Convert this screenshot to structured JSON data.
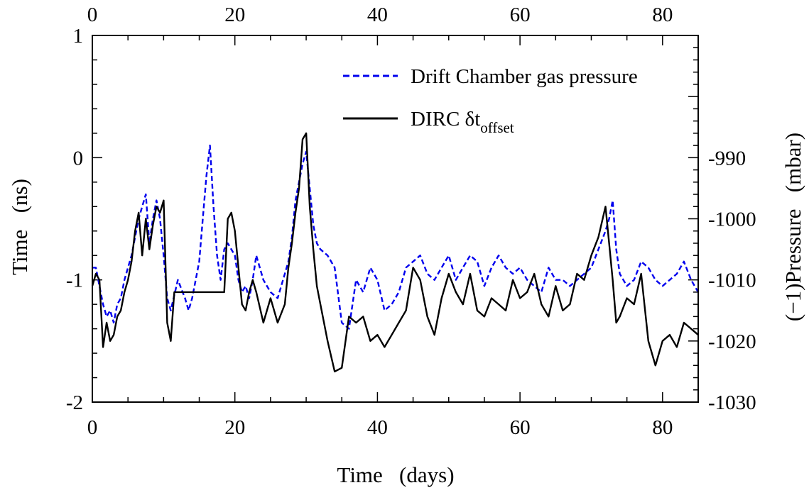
{
  "chart_data": {
    "type": "line",
    "xlabel": "Time   (days)",
    "ylabel": "Time   (ns)",
    "ylabel_right": "(−1)Pressure   (mbar)",
    "xlim": [
      0,
      85
    ],
    "ylim": [
      -2,
      1
    ],
    "ylim_right": [
      -1030,
      -970
    ],
    "xticks": [
      0,
      20,
      40,
      60,
      80
    ],
    "xticks_top": [
      0,
      20,
      40,
      60,
      80
    ],
    "yticks": [
      -2,
      -1,
      0,
      1
    ],
    "yticks_right": [
      -1030,
      -1020,
      -1010,
      -1000,
      -990
    ],
    "grid": false,
    "legend_position": "top-right",
    "series": [
      {
        "name": "Drift Chamber gas pressure",
        "axis": "right",
        "style": "dashed",
        "color": "#0000ee",
        "x": [
          0,
          0.5,
          1,
          1.5,
          2,
          2.5,
          3,
          3.5,
          4,
          4.5,
          5,
          5.5,
          6,
          6.5,
          7,
          7.5,
          8,
          8.5,
          9,
          9.5,
          10,
          10.5,
          11,
          12,
          13,
          13.5,
          14,
          14.5,
          15,
          15.5,
          16,
          16.5,
          17,
          17.5,
          18,
          18.5,
          19,
          19.5,
          20,
          20.5,
          21,
          21.5,
          22,
          22.5,
          23,
          24,
          25,
          26,
          27,
          27.5,
          28,
          28.5,
          29,
          29.5,
          30,
          30.5,
          31,
          31.5,
          32,
          33,
          34,
          35,
          36,
          37,
          38,
          39,
          40,
          41,
          42,
          43,
          44,
          45,
          46,
          47,
          48,
          49,
          50,
          51,
          52,
          53,
          54,
          55,
          56,
          57,
          58,
          59,
          60,
          61,
          62,
          63,
          64,
          65,
          66,
          67,
          68,
          69,
          70,
          71,
          72,
          72.5,
          73,
          73.5,
          74,
          75,
          76,
          77,
          78,
          79,
          80,
          81,
          82,
          83,
          84,
          85
        ],
        "y": [
          -1008,
          -1008,
          -1011,
          -1014,
          -1016,
          -1015,
          -1017,
          -1014,
          -1013,
          -1010,
          -1008,
          -1006,
          -1003,
          -1000,
          -998,
          -996,
          -1004,
          -1000,
          -997,
          -1000,
          -1006,
          -1013,
          -1015,
          -1010,
          -1013,
          -1015,
          -1013,
          -1010,
          -1007,
          -1000,
          -993,
          -988,
          -998,
          -1006,
          -1010,
          -1005,
          -1004,
          -1005,
          -1006,
          -1010,
          -1012,
          -1011,
          -1013,
          -1010,
          -1006,
          -1010,
          -1012,
          -1013,
          -1009,
          -1007,
          -1003,
          -997,
          -994,
          -991,
          -989,
          -995,
          -1001,
          -1004,
          -1005,
          -1006,
          -1008,
          -1017,
          -1018,
          -1010,
          -1012,
          -1008,
          -1010,
          -1015,
          -1014,
          -1012,
          -1008,
          -1007,
          -1006,
          -1009,
          -1010,
          -1008,
          -1006,
          -1010,
          -1008,
          -1006,
          -1007,
          -1011,
          -1008,
          -1006,
          -1008,
          -1009,
          -1008,
          -1010,
          -1011,
          -1012,
          -1008,
          -1010,
          -1010,
          -1011,
          -1010,
          -1009,
          -1008,
          -1005,
          -1002,
          -1000,
          -997,
          -1005,
          -1009,
          -1011,
          -1010,
          -1007,
          -1008,
          -1010,
          -1011,
          -1010,
          -1009,
          -1007,
          -1010,
          -1012
        ]
      },
      {
        "name": "DIRC δt",
        "name_subscript": "offset",
        "axis": "left",
        "style": "solid",
        "color": "#000000",
        "x": [
          0,
          0.5,
          1,
          1.5,
          2,
          2.5,
          3,
          3.5,
          4,
          4.5,
          5,
          5.5,
          6,
          6.5,
          7,
          7.5,
          8,
          8.5,
          9,
          9.5,
          10,
          10.5,
          11,
          11.5,
          18.5,
          19,
          19.5,
          20,
          21,
          21.5,
          22,
          22.5,
          23,
          24,
          25,
          26,
          27,
          27.5,
          28,
          28.5,
          29,
          29.5,
          30,
          30.5,
          31,
          31.5,
          32,
          33,
          34,
          35,
          36,
          37,
          38,
          39,
          40,
          41,
          42,
          43,
          44,
          45,
          46,
          47,
          48,
          49,
          50,
          51,
          52,
          53,
          54,
          55,
          56,
          57,
          58,
          59,
          60,
          61,
          62,
          63,
          64,
          65,
          66,
          67,
          68,
          69,
          70,
          71,
          72,
          72.5,
          73,
          73.5,
          74,
          75,
          76,
          77,
          78,
          79,
          80,
          81,
          82,
          83,
          84,
          85
        ],
        "y": [
          -1.05,
          -0.95,
          -1.0,
          -1.55,
          -1.35,
          -1.5,
          -1.45,
          -1.3,
          -1.25,
          -1.1,
          -1.0,
          -0.85,
          -0.6,
          -0.45,
          -0.8,
          -0.5,
          -0.75,
          -0.55,
          -0.4,
          -0.45,
          -0.35,
          -1.35,
          -1.5,
          -1.1,
          -1.1,
          -0.5,
          -0.45,
          -0.6,
          -1.2,
          -1.25,
          -1.1,
          -1.0,
          -1.1,
          -1.35,
          -1.15,
          -1.35,
          -1.2,
          -0.9,
          -0.7,
          -0.45,
          -0.25,
          0.15,
          0.2,
          -0.4,
          -0.75,
          -1.05,
          -1.2,
          -1.5,
          -1.75,
          -1.72,
          -1.3,
          -1.35,
          -1.3,
          -1.5,
          -1.45,
          -1.55,
          -1.45,
          -1.35,
          -1.25,
          -0.9,
          -1.0,
          -1.3,
          -1.45,
          -1.15,
          -0.95,
          -1.1,
          -1.2,
          -0.95,
          -1.25,
          -1.3,
          -1.15,
          -1.2,
          -1.25,
          -1.0,
          -1.15,
          -1.1,
          -0.95,
          -1.2,
          -1.3,
          -1.05,
          -1.25,
          -1.2,
          -0.95,
          -1.0,
          -0.8,
          -0.65,
          -0.4,
          -0.7,
          -1.0,
          -1.35,
          -1.3,
          -1.15,
          -1.2,
          -0.95,
          -1.5,
          -1.7,
          -1.5,
          -1.45,
          -1.55,
          -1.35,
          -1.4,
          -1.45
        ]
      }
    ]
  }
}
